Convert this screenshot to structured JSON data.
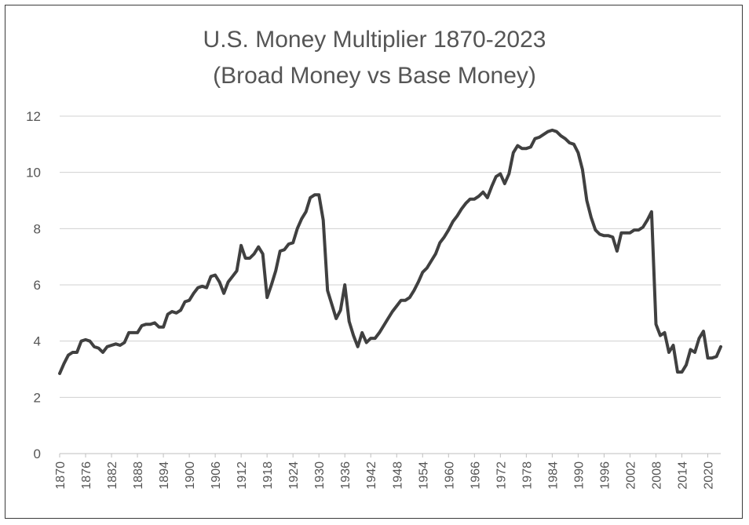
{
  "chart_data": {
    "type": "line",
    "title": "U.S. Money Multiplier 1870-2023",
    "subtitle": "(Broad Money vs Base Money)",
    "xlabel": "",
    "ylabel": "",
    "xlim": [
      1870,
      2023
    ],
    "ylim": [
      0,
      12
    ],
    "yticks": [
      0,
      2,
      4,
      6,
      8,
      10,
      12
    ],
    "xticks": [
      1870,
      1876,
      1882,
      1888,
      1894,
      1900,
      1906,
      1912,
      1918,
      1924,
      1930,
      1936,
      1942,
      1948,
      1954,
      1960,
      1966,
      1972,
      1978,
      1984,
      1990,
      1996,
      2002,
      2008,
      2014,
      2020
    ],
    "grid": true,
    "legend": "none",
    "colors": {
      "line": "#404040",
      "grid": "#d0d0d0",
      "text": "#555555"
    },
    "series": [
      {
        "x": [
          1870,
          1871,
          1872,
          1873,
          1874,
          1875,
          1876,
          1877,
          1878,
          1879,
          1880,
          1881,
          1882,
          1883,
          1884,
          1885,
          1886,
          1887,
          1888,
          1889,
          1890,
          1891,
          1892,
          1893,
          1894,
          1895,
          1896,
          1897,
          1898,
          1899,
          1900,
          1901,
          1902,
          1903,
          1904,
          1905,
          1906,
          1907,
          1908,
          1909,
          1910,
          1911,
          1912,
          1913,
          1914,
          1915,
          1916,
          1917,
          1918,
          1919,
          1920,
          1921,
          1922,
          1923,
          1924,
          1925,
          1926,
          1927,
          1928,
          1929,
          1930,
          1931,
          1932,
          1933,
          1934,
          1935,
          1936,
          1937,
          1938,
          1939,
          1940,
          1941,
          1942,
          1943,
          1944,
          1945,
          1946,
          1947,
          1948,
          1949,
          1950,
          1951,
          1952,
          1953,
          1954,
          1955,
          1956,
          1957,
          1958,
          1959,
          1960,
          1961,
          1962,
          1963,
          1964,
          1965,
          1966,
          1967,
          1968,
          1969,
          1970,
          1971,
          1972,
          1973,
          1974,
          1975,
          1976,
          1977,
          1978,
          1979,
          1980,
          1981,
          1982,
          1983,
          1984,
          1985,
          1986,
          1987,
          1988,
          1989,
          1990,
          1991,
          1992,
          1993,
          1994,
          1995,
          1996,
          1997,
          1998,
          1999,
          2000,
          2001,
          2002,
          2003,
          2004,
          2005,
          2006,
          2007,
          2008,
          2009,
          2010,
          2011,
          2012,
          2013,
          2014,
          2015,
          2016,
          2017,
          2018,
          2019,
          2020,
          2021,
          2022,
          2023
        ],
        "values": [
          2.85,
          3.2,
          3.5,
          3.6,
          3.6,
          4.0,
          4.05,
          4.0,
          3.8,
          3.75,
          3.6,
          3.8,
          3.85,
          3.9,
          3.85,
          3.95,
          4.3,
          4.3,
          4.3,
          4.55,
          4.6,
          4.6,
          4.65,
          4.5,
          4.5,
          4.95,
          5.05,
          5.0,
          5.1,
          5.4,
          5.45,
          5.7,
          5.9,
          5.95,
          5.9,
          6.3,
          6.35,
          6.1,
          5.7,
          6.1,
          6.3,
          6.5,
          7.4,
          6.95,
          6.95,
          7.1,
          7.35,
          7.1,
          5.55,
          6.0,
          6.5,
          7.2,
          7.25,
          7.45,
          7.5,
          8.0,
          8.35,
          8.6,
          9.1,
          9.2,
          9.2,
          8.3,
          5.8,
          5.3,
          4.8,
          5.1,
          6.0,
          4.7,
          4.2,
          3.8,
          4.3,
          3.95,
          4.1,
          4.1,
          4.3,
          4.55,
          4.8,
          5.05,
          5.25,
          5.45,
          5.45,
          5.55,
          5.8,
          6.1,
          6.45,
          6.6,
          6.85,
          7.1,
          7.5,
          7.7,
          7.95,
          8.25,
          8.45,
          8.7,
          8.9,
          9.05,
          9.05,
          9.15,
          9.3,
          9.1,
          9.5,
          9.85,
          9.95,
          9.6,
          9.95,
          10.7,
          10.95,
          10.85,
          10.85,
          10.9,
          11.2,
          11.25,
          11.35,
          11.45,
          11.5,
          11.45,
          11.3,
          11.2,
          11.05,
          11.0,
          10.7,
          10.1,
          9.0,
          8.4,
          7.95,
          7.8,
          7.75,
          7.75,
          7.7,
          7.2,
          7.85,
          7.85,
          7.85,
          7.95,
          7.95,
          8.05,
          8.3,
          8.6,
          4.6,
          4.2,
          4.3,
          3.6,
          3.85,
          2.9,
          2.9,
          3.15,
          3.7,
          3.6,
          4.1,
          4.35,
          3.4,
          3.4,
          3.45,
          3.8
        ]
      }
    ]
  }
}
